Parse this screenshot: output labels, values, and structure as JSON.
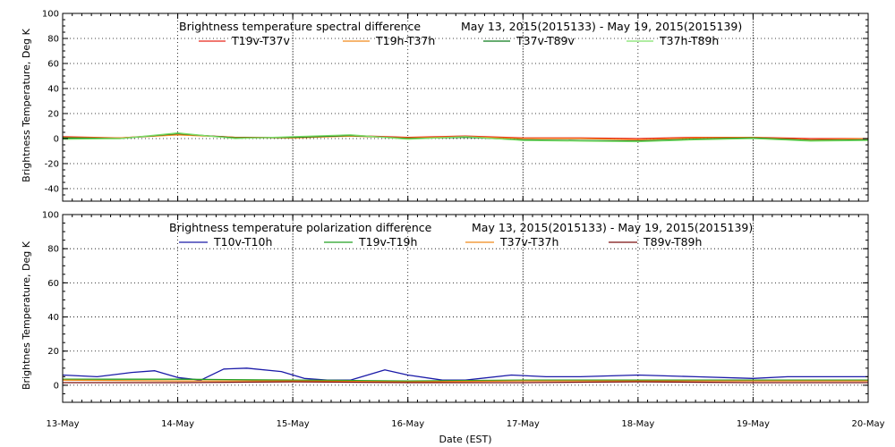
{
  "chart_data": [
    {
      "type": "line",
      "title": "Brightness temperature spectral difference",
      "date_range": "May 13, 2015(2015133) - May 19, 2015(2015139)",
      "ylabel": "Brightness Temperature, Deg K",
      "ylim": [
        -50,
        100
      ],
      "yticks": [
        -40,
        -20,
        0,
        20,
        40,
        60,
        80,
        100
      ],
      "xlim": [
        0,
        7
      ],
      "grid": true,
      "legend_position": "top",
      "series": [
        {
          "name": "T19v-T37v",
          "color": "#e8261b",
          "x": [
            0,
            0.5,
            1,
            1.5,
            2,
            2.5,
            3,
            3.5,
            4,
            4.5,
            5,
            5.5,
            6,
            6.5,
            7
          ],
          "values": [
            1.5,
            0.5,
            3.5,
            1,
            1,
            2.5,
            1,
            2,
            0.5,
            0.5,
            0,
            1,
            1,
            0,
            0
          ]
        },
        {
          "name": "T19h-T37h",
          "color": "#f0891a",
          "x": [
            0,
            0.5,
            1,
            1.5,
            2,
            2.5,
            3,
            3.5,
            4,
            4.5,
            5,
            5.5,
            6,
            6.5,
            7
          ],
          "values": [
            1,
            0.5,
            3,
            1,
            0.5,
            2,
            0.5,
            1.5,
            0,
            0,
            -1,
            0.5,
            1,
            -1,
            0
          ]
        },
        {
          "name": "T37v-T89v",
          "color": "#0a7a1a",
          "x": [
            0,
            0.5,
            1,
            1.5,
            2,
            2.5,
            3,
            3.5,
            4,
            4.5,
            5,
            5.5,
            6,
            6.5,
            7
          ],
          "values": [
            0.5,
            0,
            4,
            0.5,
            1,
            2.5,
            0,
            1,
            -1,
            -1.5,
            -2,
            -0.5,
            0.5,
            -1.5,
            -1
          ]
        },
        {
          "name": "T37h-T89h",
          "color": "#7fe06a",
          "x": [
            0,
            0.5,
            1,
            1.5,
            2,
            2.5,
            3,
            3.5,
            4,
            4.5,
            5,
            5.5,
            6,
            6.5,
            7
          ],
          "values": [
            -0.5,
            0,
            4.5,
            0,
            1.5,
            3,
            -0.5,
            1.5,
            -1.5,
            -2,
            -2.5,
            -1,
            0,
            -2,
            -1.5
          ]
        }
      ]
    },
    {
      "type": "line",
      "title": "Brightness temperature polarization difference",
      "date_range": "May 13, 2015(2015133) - May 19, 2015(2015139)",
      "ylabel": "Brightnes Temperature, Deg K",
      "xlabel": "Date (EST)",
      "ylim": [
        -10,
        100
      ],
      "yticks": [
        0,
        20,
        40,
        60,
        80,
        100
      ],
      "xlim": [
        0,
        7
      ],
      "xticks": [
        0,
        1,
        2,
        3,
        4,
        5,
        6,
        7
      ],
      "xtick_labels": [
        "13-May",
        "14-May",
        "15-May",
        "16-May",
        "17-May",
        "18-May",
        "19-May",
        "20-May"
      ],
      "grid": true,
      "legend_position": "top",
      "series": [
        {
          "name": "T10v-T10h",
          "color": "#1a1aa8",
          "x": [
            0,
            0.3,
            0.6,
            0.8,
            1,
            1.2,
            1.4,
            1.6,
            1.9,
            2.1,
            2.3,
            2.5,
            2.8,
            3,
            3.3,
            3.5,
            3.9,
            4.2,
            4.5,
            5,
            5.5,
            6,
            6.3,
            6.7,
            7
          ],
          "values": [
            6,
            5,
            7.5,
            8.5,
            4.5,
            3,
            9.5,
            10,
            8,
            4,
            3,
            3,
            9,
            6,
            3,
            3,
            6,
            5,
            5,
            6,
            5,
            4,
            5,
            5,
            5
          ]
        },
        {
          "name": "T19v-T19h",
          "color": "#22a022",
          "x": [
            0,
            1,
            2,
            3,
            4,
            5,
            6,
            7
          ],
          "values": [
            3.5,
            3.5,
            3,
            2.5,
            3,
            3,
            3,
            3
          ]
        },
        {
          "name": "T37v-T37h",
          "color": "#f0891a",
          "x": [
            0,
            1,
            2,
            3,
            4,
            5,
            6,
            7
          ],
          "values": [
            3,
            2.5,
            2.5,
            2,
            2.5,
            2.5,
            2.5,
            2.5
          ]
        },
        {
          "name": "T89v-T89h",
          "color": "#7a0f0f",
          "x": [
            0,
            1,
            2,
            3,
            4,
            5,
            6,
            7
          ],
          "values": [
            1.5,
            1.5,
            2,
            1.5,
            1.5,
            2,
            1.5,
            1.5
          ]
        }
      ]
    }
  ]
}
